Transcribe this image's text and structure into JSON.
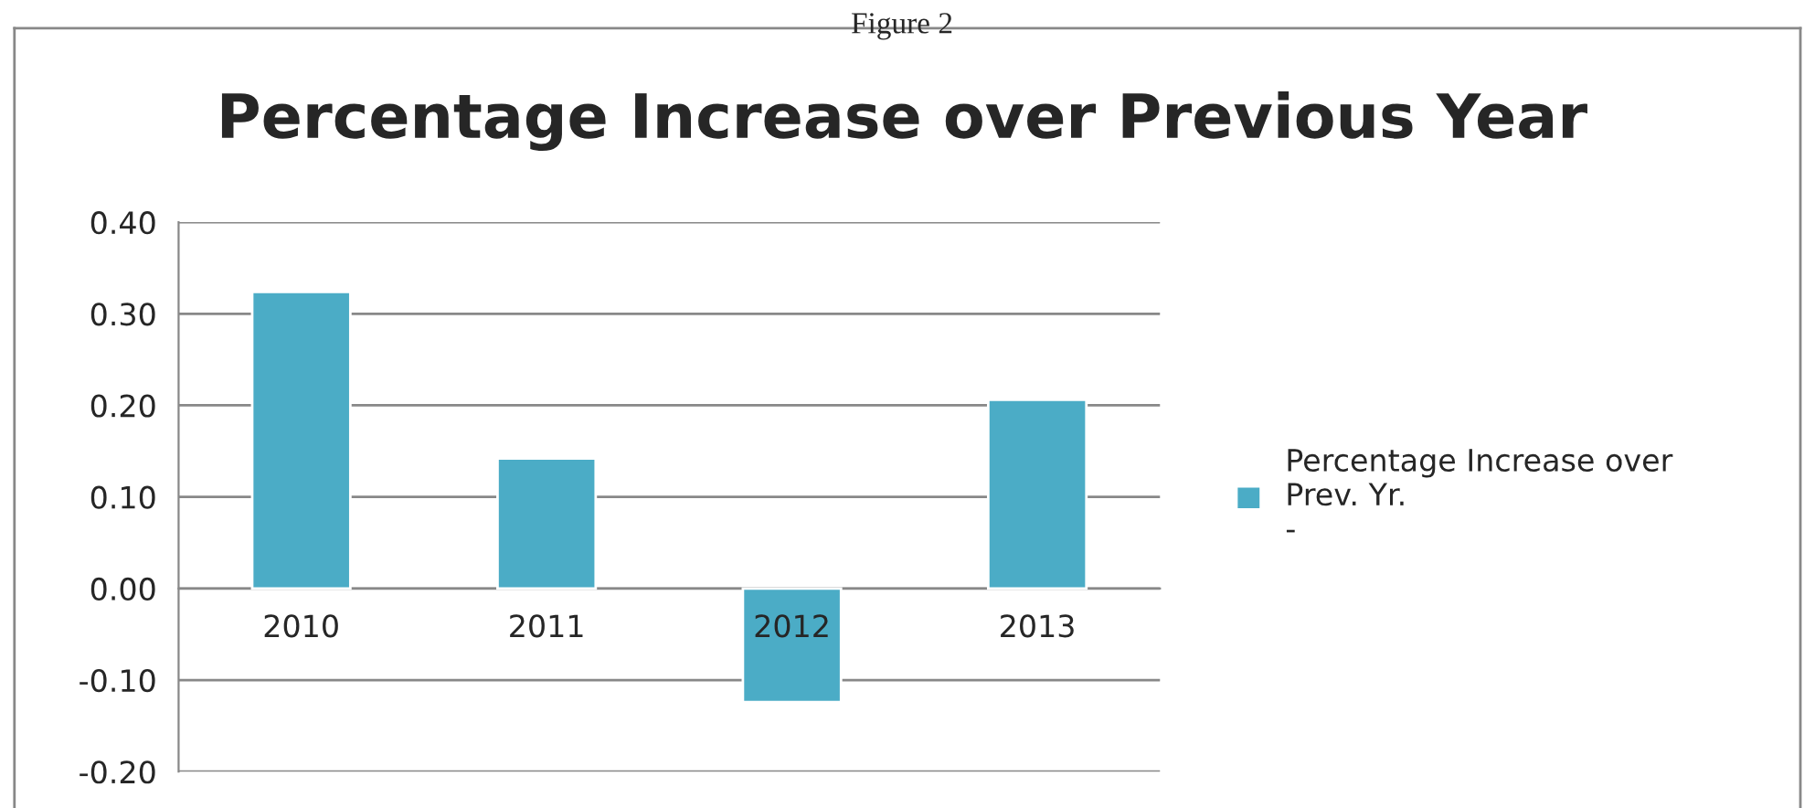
{
  "chart_data": {
    "type": "bar",
    "title": "Percentage Increase over Previous Year",
    "annotations": [
      "Figure 2"
    ],
    "categories": [
      "2010",
      "2011",
      "2012",
      "2013"
    ],
    "series": [
      {
        "name": "Percentage Increase over\nPrev. Yr.\n-",
        "color": "#4bacc6",
        "values": [
          0.324,
          0.142,
          -0.124,
          0.206
        ]
      }
    ],
    "ylim": [
      -0.2,
      0.4
    ],
    "yticks": [
      {
        "value": -0.2,
        "label": "-0.20"
      },
      {
        "value": -0.1,
        "label": "-0.10"
      },
      {
        "value": 0,
        "label": "0.00"
      },
      {
        "value": 0.1,
        "label": "0.10"
      },
      {
        "value": 0.2,
        "label": "0.20"
      },
      {
        "value": 0.3,
        "label": "0.30"
      },
      {
        "value": 0.4,
        "label": "0.40"
      }
    ],
    "grid": "y",
    "legend": "right"
  }
}
